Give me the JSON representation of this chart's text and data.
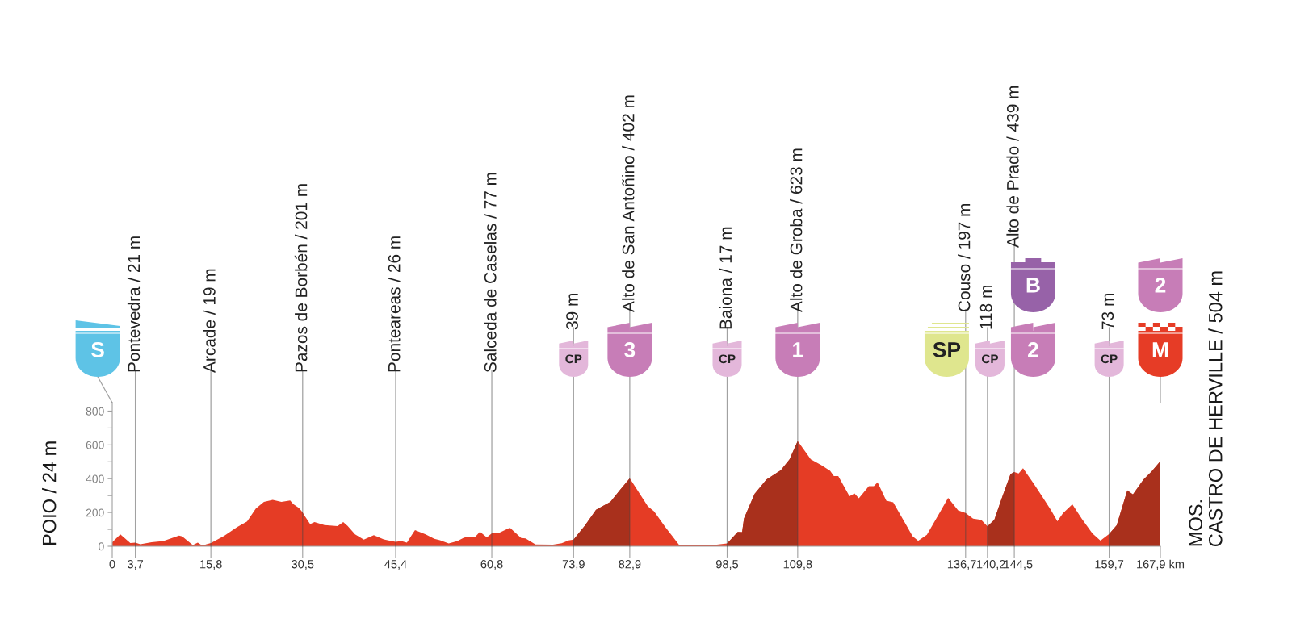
{
  "chart_data": {
    "type": "area",
    "ylabel": "POIO / 24 m",
    "series": [
      {
        "color": "#e53c25",
        "x": [
          0,
          1.3,
          2.9,
          3.7,
          4.5,
          6.3,
          8.2,
          10.7,
          11.2,
          12.9,
          13.7,
          14.4,
          15.8,
          17.9,
          20.0,
          21.6,
          23.0,
          24.3,
          25.7,
          27.1,
          28.5,
          29.0,
          29.9,
          30.5,
          30.8,
          31.7,
          32.4,
          34.0,
          36.1,
          37.0,
          37.7,
          38.9,
          40.3,
          41.9,
          43.5,
          44.7,
          45.4,
          46.3,
          47.2,
          48.5,
          50.2,
          51.6,
          52.5,
          53.9,
          55.3,
          56.3,
          57.0,
          58.1,
          58.9,
          60.0,
          60.8,
          61.8,
          63.7,
          65.5,
          66.2,
          67.8,
          70.6,
          72.0,
          73.1,
          73.9,
          75.7,
          77.5,
          79.8,
          81.2,
          82.9,
          85.8,
          86.8,
          88.6,
          90.8,
          96.0,
          98.5,
          100.2,
          100.9,
          101.2,
          102.9,
          104.8,
          107.1,
          108.5,
          109.8,
          111.9,
          113.6,
          115.0,
          115.6,
          116.3,
          118.1,
          118.9,
          119.6,
          121.2,
          122.0,
          122.6,
          124.0,
          125.1,
          126.9,
          128.2,
          129.1,
          130.5,
          132.5,
          133.9,
          135.5,
          136.7,
          137.9,
          139.2,
          140.2,
          141.3,
          142.4,
          143.9,
          144.5,
          145.2,
          145.9,
          147.6,
          148.9,
          150.4,
          151.4,
          152.3,
          153.8,
          155.3,
          157.0,
          158.3,
          159.7,
          160.9,
          162.6,
          163.5,
          165.2,
          166.5,
          167.9
        ],
        "values": [
          24,
          70,
          19,
          21,
          12,
          24,
          31,
          63,
          58,
          7,
          22,
          5,
          19,
          61,
          114,
          147,
          223,
          263,
          275,
          263,
          271,
          249,
          227,
          201,
          181,
          131,
          143,
          125,
          119,
          143,
          121,
          70,
          39,
          66,
          41,
          31,
          26,
          31,
          22,
          96,
          70,
          44,
          36,
          17,
          31,
          50,
          57,
          54,
          86,
          52,
          77,
          76,
          110,
          49,
          47,
          11,
          9,
          18,
          35,
          39,
          122,
          216,
          263,
          327,
          402,
          236,
          207,
          113,
          8,
          6,
          17,
          85,
          83,
          165,
          310,
          395,
          450,
          514,
          623,
          514,
          480,
          446,
          415,
          415,
          296,
          313,
          284,
          356,
          356,
          379,
          270,
          260,
          145,
          60,
          32,
          68,
          196,
          287,
          212,
          197,
          164,
          156,
          118,
          156,
          275,
          427,
          439,
          431,
          462,
          371,
          299,
          212,
          148,
          196,
          248,
          164,
          76,
          33,
          73,
          124,
          331,
          307,
          395,
          443,
          504
        ]
      },
      {
        "color": "#a9301c",
        "x": [
          73.9,
          75.7,
          77.5,
          79.8,
          81.2,
          82.9
        ],
        "values": [
          39,
          122,
          216,
          263,
          327,
          402
        ]
      },
      {
        "color": "#a9301c",
        "x": [
          98.5,
          100.2,
          100.9,
          101.2,
          102.9,
          104.8,
          107.1,
          108.5,
          109.8
        ],
        "values": [
          17,
          85,
          83,
          165,
          310,
          395,
          450,
          514,
          623
        ]
      },
      {
        "color": "#a9301c",
        "x": [
          140.2,
          141.3,
          142.4,
          143.9,
          144.5
        ],
        "values": [
          118,
          156,
          275,
          427,
          439
        ]
      },
      {
        "color": "#a9301c",
        "x": [
          159.7,
          160.9,
          162.6,
          163.5,
          165.2,
          166.5,
          167.9
        ],
        "values": [
          73,
          124,
          331,
          307,
          395,
          443,
          504
        ]
      }
    ],
    "xlim": [
      0,
      167.9
    ],
    "ylim": [
      0,
      850
    ],
    "xticks": [
      0,
      {
        "value": 3.7,
        "label": "3,7"
      },
      {
        "value": 15.8,
        "label": "15,8"
      },
      {
        "value": 30.5,
        "label": "30,5"
      },
      {
        "value": 45.4,
        "label": "45,4"
      },
      {
        "value": 60.8,
        "label": "60,8"
      },
      {
        "value": 73.9,
        "label": "73,9"
      },
      {
        "value": 82.9,
        "label": "82,9"
      },
      {
        "value": 98.5,
        "label": "98,5"
      },
      {
        "value": 109.8,
        "label": "109,8"
      },
      {
        "value": 136.7,
        "label": "136,7"
      },
      {
        "value": 140.2,
        "label": "140,2"
      },
      {
        "value": 144.5,
        "label": "144,5"
      },
      {
        "value": 159.7,
        "label": "159,7"
      },
      {
        "value": 167.9,
        "label": "167,9 km"
      }
    ],
    "yticks": [
      0,
      {
        "value": 100,
        "label": null
      },
      200,
      {
        "value": 300,
        "label": null
      },
      400,
      {
        "value": 500,
        "label": null
      },
      600,
      {
        "value": 700,
        "label": null
      },
      800
    ],
    "ref_lines": [
      {
        "axis": "x",
        "value": 3.7,
        "label": "Pontevedra / 21 m"
      },
      {
        "axis": "x",
        "value": 15.8,
        "label": "Arcade / 19 m"
      },
      {
        "axis": "x",
        "value": 30.5,
        "label": "Pazos de Borbén / 201 m"
      },
      {
        "axis": "x",
        "value": 45.4,
        "label": "Ponteareas / 26 m"
      },
      {
        "axis": "x",
        "value": 60.8,
        "label": "Salceda de Caselas / 77 m"
      },
      {
        "axis": "x",
        "value": 73.9,
        "label": "39 m"
      },
      {
        "axis": "x",
        "value": 82.9,
        "label": "Alto de San Antoñino / 402 m"
      },
      {
        "axis": "x",
        "value": 98.5,
        "label": "Baiona / 17 m"
      },
      {
        "axis": "x",
        "value": 109.8,
        "label": "Alto de Groba / 623 m"
      },
      {
        "axis": "x",
        "value": 136.7,
        "label": "Couso / 197 m"
      },
      {
        "axis": "x",
        "value": 140.2,
        "label": "118 m"
      },
      {
        "axis": "x",
        "value": 144.5,
        "label": "Alto de Prado / 439 m"
      },
      {
        "axis": "x",
        "value": 159.7,
        "label": "73 m"
      }
    ],
    "annotations": [
      {
        "text": "MOS.\nCASTRO DE HERVILLE / 504 m",
        "x": 167.9,
        "y": 504
      },
      "S",
      "CP",
      "3",
      "CP",
      "1",
      "SP",
      "CP",
      "2",
      "B",
      "CP",
      "M",
      "2"
    ]
  }
}
